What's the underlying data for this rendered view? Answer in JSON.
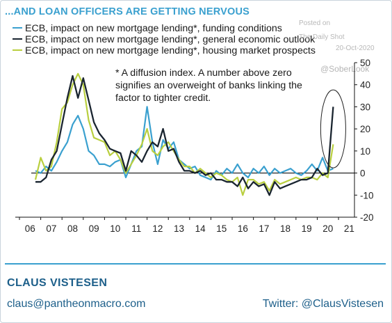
{
  "title": "...AND LOAN OFFICERS ARE GETTING NERVOUS",
  "note": "* A diffusion index. A number above zero signifies an overweight of banks linking the factor to tighter credit.",
  "watermark": {
    "posted": "Posted on",
    "source": "The Daily Shot",
    "date": "20-Oct-2020",
    "handle": "@SoberLook"
  },
  "footer": {
    "author": "CLAUS VISTESEN",
    "email": "claus@pantheonmacro.com",
    "twitter": "Twitter: @ClausVistesen"
  },
  "colors": {
    "accent": "#3aa0cf",
    "funding": "#3aa0cf",
    "economic": "#1a2530",
    "housing": "#b9cf3f",
    "footer_text": "#1d5f8a"
  },
  "chart_data": {
    "type": "line",
    "title": "...AND LOAN OFFICERS ARE GETTING NERVOUS",
    "xlabel": "",
    "ylabel": "",
    "xlim": [
      2006,
      2021.75
    ],
    "ylim": [
      -20,
      50
    ],
    "x_ticks": [
      "06",
      "07",
      "08",
      "09",
      "10",
      "11",
      "12",
      "13",
      "14",
      "15",
      "16",
      "17",
      "18",
      "19",
      "20",
      "21"
    ],
    "y_ticks": [
      -20,
      -10,
      0,
      10,
      20,
      30,
      40,
      50
    ],
    "grid": false,
    "legend_position": "top-left",
    "annotation": "highlighted latest values (ellipse)",
    "series": [
      {
        "name": "ECB, impact on new mortgage lending*, funding conditions",
        "color": "#3aa0cf",
        "x": [
          2006.75,
          2007.0,
          2007.25,
          2007.5,
          2007.75,
          2008.0,
          2008.25,
          2008.5,
          2008.75,
          2009.0,
          2009.25,
          2009.5,
          2009.75,
          2010.0,
          2010.25,
          2010.5,
          2010.75,
          2011.0,
          2011.25,
          2011.5,
          2011.75,
          2012.0,
          2012.25,
          2012.5,
          2012.75,
          2013.0,
          2013.25,
          2013.5,
          2013.75,
          2014.0,
          2014.25,
          2014.5,
          2014.75,
          2015.0,
          2015.25,
          2015.5,
          2015.75,
          2016.0,
          2016.25,
          2016.5,
          2016.75,
          2017.0,
          2017.25,
          2017.5,
          2017.75,
          2018.0,
          2018.25,
          2018.5,
          2018.75,
          2019.0,
          2019.25,
          2019.5,
          2019.75,
          2020.0,
          2020.25,
          2020.5,
          2020.75
        ],
        "y": [
          1,
          0,
          3,
          1,
          5,
          10,
          14,
          22,
          26,
          20,
          10,
          8,
          4,
          4,
          3,
          5,
          6,
          -2,
          4,
          10,
          12,
          30,
          14,
          4,
          15,
          11,
          14,
          6,
          4,
          2,
          3,
          -1,
          -2,
          -3,
          1,
          -1,
          2,
          0,
          4,
          0,
          -2,
          2,
          0,
          3,
          -1,
          2,
          0,
          1,
          2,
          0,
          -1,
          1,
          4,
          1,
          7,
          1,
          2
        ]
      },
      {
        "name": "ECB, impact on new mortgage lending*, general economic outlook",
        "color": "#1a2530",
        "x": [
          2006.75,
          2007.0,
          2007.25,
          2007.5,
          2007.75,
          2008.0,
          2008.25,
          2008.5,
          2008.75,
          2009.0,
          2009.25,
          2009.5,
          2009.75,
          2010.0,
          2010.25,
          2010.5,
          2010.75,
          2011.0,
          2011.25,
          2011.5,
          2011.75,
          2012.0,
          2012.25,
          2012.5,
          2012.75,
          2013.0,
          2013.25,
          2013.5,
          2013.75,
          2014.0,
          2014.25,
          2014.5,
          2014.75,
          2015.0,
          2015.25,
          2015.5,
          2015.75,
          2016.0,
          2016.25,
          2016.5,
          2016.75,
          2017.0,
          2017.25,
          2017.5,
          2017.75,
          2018.0,
          2018.25,
          2018.5,
          2018.75,
          2019.0,
          2019.25,
          2019.5,
          2019.75,
          2020.0,
          2020.25,
          2020.5,
          2020.75
        ],
        "y": [
          -4,
          -4,
          -2,
          6,
          10,
          22,
          34,
          44,
          34,
          43,
          33,
          23,
          18,
          15,
          11,
          10,
          9,
          1,
          10,
          8,
          5,
          10,
          14,
          12,
          20,
          10,
          11,
          5,
          1,
          1,
          0,
          1,
          -1,
          0,
          -3,
          -3,
          -4,
          -4,
          -6,
          -2,
          -7,
          -4,
          -6,
          -5,
          -10,
          -4,
          -7,
          -6,
          -5,
          -4,
          -3,
          -3,
          -2,
          2,
          -1,
          0,
          30
        ]
      },
      {
        "name": "ECB, impact on new mortgage lending*, housing market prospects",
        "color": "#b9cf3f",
        "x": [
          2006.75,
          2007.0,
          2007.25,
          2007.5,
          2007.75,
          2008.0,
          2008.25,
          2008.5,
          2008.75,
          2009.0,
          2009.25,
          2009.5,
          2009.75,
          2010.0,
          2010.25,
          2010.5,
          2010.75,
          2011.0,
          2011.25,
          2011.5,
          2011.75,
          2012.0,
          2012.25,
          2012.5,
          2012.75,
          2013.0,
          2013.25,
          2013.5,
          2013.75,
          2014.0,
          2014.25,
          2014.5,
          2014.75,
          2015.0,
          2015.25,
          2015.5,
          2015.75,
          2016.0,
          2016.25,
          2016.5,
          2016.75,
          2017.0,
          2017.25,
          2017.5,
          2017.75,
          2018.0,
          2018.25,
          2018.5,
          2018.75,
          2019.0,
          2019.25,
          2019.5,
          2019.75,
          2020.0,
          2020.25,
          2020.5,
          2020.75
        ],
        "y": [
          -3,
          7,
          1,
          3,
          14,
          29,
          32,
          40,
          45,
          40,
          24,
          16,
          15,
          14,
          8,
          10,
          6,
          0,
          4,
          8,
          13,
          20,
          10,
          8,
          12,
          14,
          10,
          6,
          3,
          3,
          0,
          2,
          0,
          -2,
          0,
          -1,
          -3,
          -4,
          -2,
          -10,
          -3,
          -3,
          -5,
          -4,
          -8,
          -3,
          -5,
          -4,
          -3,
          -2,
          -3,
          -2,
          -2,
          -3,
          0,
          -2,
          13
        ]
      }
    ]
  }
}
